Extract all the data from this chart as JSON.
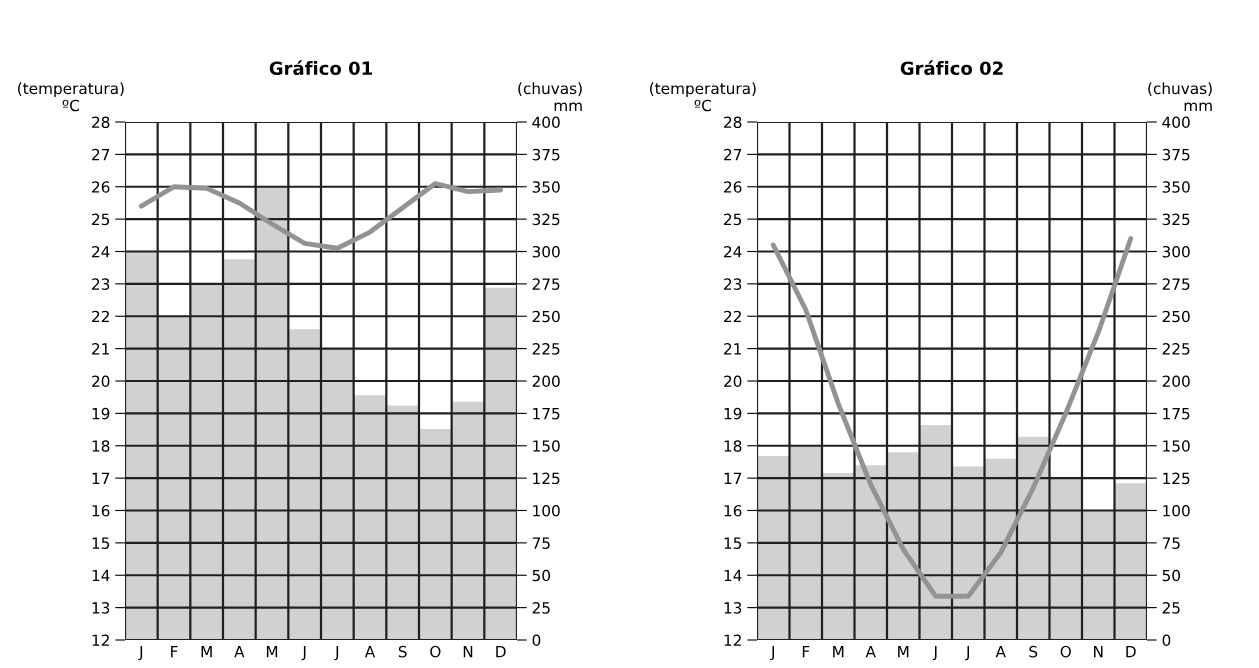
{
  "chart_data": [
    {
      "type": "bar",
      "title": "Gráfico 01",
      "ylabel": "(temperatura)\nºC",
      "y2label": "(chuvas)\nmm",
      "categories": [
        "J",
        "F",
        "M",
        "A",
        "M",
        "J",
        "J",
        "A",
        "S",
        "O",
        "N",
        "D"
      ],
      "series": [
        {
          "type": "bar",
          "axis": "y2",
          "color": "#d0d1d3",
          "values": [
            300,
            250,
            275,
            294,
            350,
            240,
            225,
            189,
            181,
            163,
            184,
            272
          ]
        },
        {
          "type": "line",
          "axis": "y",
          "color": "#939393",
          "values": [
            25.4,
            26.0,
            25.95,
            25.5,
            24.85,
            24.25,
            24.1,
            24.6,
            25.35,
            26.1,
            25.85,
            25.9
          ]
        }
      ],
      "ylim": [
        12,
        28
      ],
      "yticks": [
        12,
        13,
        14,
        15,
        16,
        17,
        18,
        19,
        20,
        21,
        22,
        23,
        24,
        25,
        26,
        27,
        28
      ],
      "y2lim": [
        0,
        400
      ],
      "y2ticks": [
        0,
        25,
        50,
        75,
        100,
        125,
        150,
        175,
        200,
        225,
        250,
        275,
        300,
        325,
        350,
        375,
        400
      ],
      "grid": true,
      "marker": "none",
      "line_style": "solid"
    },
    {
      "type": "bar",
      "title": "Gráfico 02",
      "ylabel": "(temperatura)\nºC",
      "y2label": "(chuvas)\nmm",
      "categories": [
        "J",
        "F",
        "M",
        "A",
        "M",
        "J",
        "J",
        "A",
        "S",
        "O",
        "N",
        "D"
      ],
      "series": [
        {
          "type": "bar",
          "axis": "y2",
          "color": "#d0d1d3",
          "values": [
            142,
            150,
            129,
            135,
            145,
            166,
            134,
            140,
            157,
            125,
            100,
            121
          ]
        },
        {
          "type": "line",
          "axis": "y",
          "color": "#939393",
          "values": [
            24.2,
            22.2,
            19.3,
            16.8,
            14.8,
            13.35,
            13.35,
            14.7,
            16.7,
            19.0,
            21.5,
            24.4
          ]
        }
      ],
      "ylim": [
        12,
        28
      ],
      "yticks": [
        12,
        13,
        14,
        15,
        16,
        17,
        18,
        19,
        20,
        21,
        22,
        23,
        24,
        25,
        26,
        27,
        28
      ],
      "y2lim": [
        0,
        400
      ],
      "y2ticks": [
        0,
        25,
        50,
        75,
        100,
        125,
        150,
        175,
        200,
        225,
        250,
        275,
        300,
        325,
        350,
        375,
        400
      ],
      "grid": true,
      "marker": "none",
      "line_style": "solid"
    }
  ]
}
